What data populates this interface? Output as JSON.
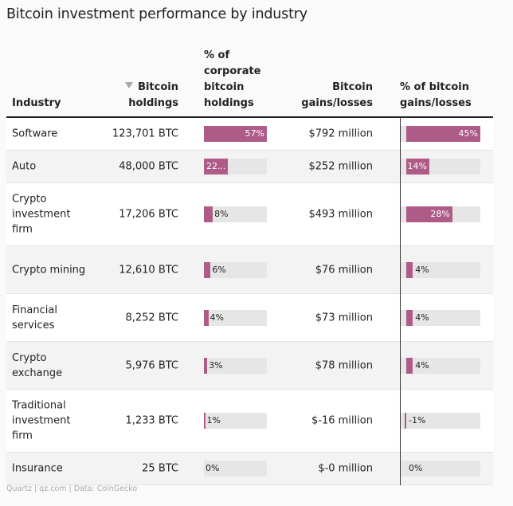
{
  "title": "Bitcoin investment performance by industry",
  "headers": {
    "industry": "Industry",
    "holdings_line1": "Bitcoin",
    "holdings_line2": "holdings",
    "pct_line1": "% of",
    "pct_line2": "corporate",
    "pct_line3": "bitcoin",
    "pct_line4": "holdings",
    "gains_line1": "Bitcoin",
    "gains_line2": "gains/losses",
    "pctg_line1": "% of bitcoin",
    "pctg_line2": "gains/losses"
  },
  "sort_icon": "sort-descending-triangle-icon",
  "source": "Quartz | qz.com | Data: CoinGecko",
  "colors": {
    "bar": "#ae5b88",
    "track": "#e6e6e6",
    "row_alt": "#f3f3f3"
  },
  "chart_data": {
    "type": "table",
    "columns": [
      "Industry",
      "Bitcoin holdings",
      "% of corporate bitcoin holdings",
      "Bitcoin gains/losses",
      "% of bitcoin gains/losses"
    ],
    "sorted_by": "Bitcoin holdings",
    "sort_order": "descending",
    "rows": [
      {
        "industry": "Software",
        "holdings": "123,701 BTC",
        "pct_holdings": 57,
        "pct_holdings_label": "57%",
        "gains": "$792 million",
        "pct_gains": 45,
        "pct_gains_label": "45%"
      },
      {
        "industry": "Auto",
        "holdings": "48,000 BTC",
        "pct_holdings": 22,
        "pct_holdings_label": "22...",
        "gains": "$252 million",
        "pct_gains": 14,
        "pct_gains_label": "14%"
      },
      {
        "industry": "Crypto investment firm",
        "holdings": "17,206 BTC",
        "pct_holdings": 8,
        "pct_holdings_label": "8%",
        "gains": "$493 million",
        "pct_gains": 28,
        "pct_gains_label": "28%"
      },
      {
        "industry": "Crypto mining",
        "holdings": "12,610 BTC",
        "pct_holdings": 6,
        "pct_holdings_label": "6%",
        "gains": "$76 million",
        "pct_gains": 4,
        "pct_gains_label": "4%"
      },
      {
        "industry": "Financial services",
        "holdings": "8,252 BTC",
        "pct_holdings": 4,
        "pct_holdings_label": "4%",
        "gains": "$73 million",
        "pct_gains": 4,
        "pct_gains_label": "4%"
      },
      {
        "industry": "Crypto exchange",
        "holdings": "5,976 BTC",
        "pct_holdings": 3,
        "pct_holdings_label": "3%",
        "gains": "$78 million",
        "pct_gains": 4,
        "pct_gains_label": "4%"
      },
      {
        "industry": "Traditional investment firm",
        "holdings": "1,233 BTC",
        "pct_holdings": 1,
        "pct_holdings_label": "1%",
        "gains": "$-16 million",
        "pct_gains": -1,
        "pct_gains_label": "-1%"
      },
      {
        "industry": "Insurance",
        "holdings": "25 BTC",
        "pct_holdings": 0,
        "pct_holdings_label": "0%",
        "gains": "$-0 million",
        "pct_gains": 0,
        "pct_gains_label": "0%"
      }
    ]
  }
}
